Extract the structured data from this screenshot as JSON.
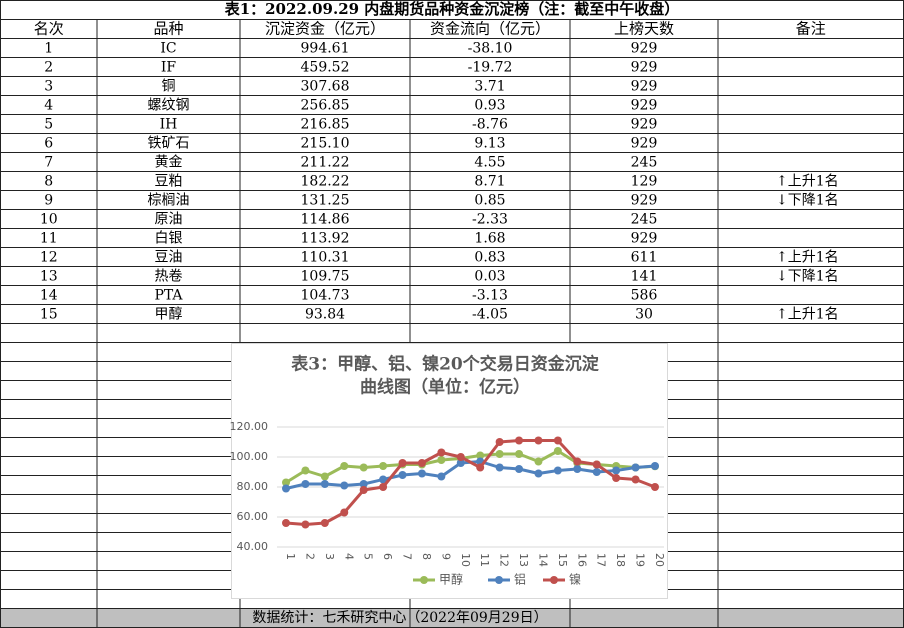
{
  "table": {
    "title": "表1：2022.09.29 内盘期货品种资金沉淀榜（注：截至中午收盘）",
    "columns": [
      "名次",
      "品种",
      "沉淀资金（亿元）",
      "资金流向（亿元）",
      "上榜天数",
      "备注"
    ],
    "rows": [
      {
        "rank": "1",
        "name": "IC",
        "amount": "994.61",
        "flow": "-38.10",
        "days": "929"
      },
      {
        "rank": "2",
        "name": "IF",
        "amount": "459.52",
        "flow": "-19.72",
        "days": "929"
      },
      {
        "rank": "3",
        "name": "铜",
        "amount": "307.68",
        "flow": "3.71",
        "days": "929"
      },
      {
        "rank": "4",
        "name": "螺纹钢",
        "amount": "256.85",
        "flow": "0.93",
        "days": "929"
      },
      {
        "rank": "5",
        "name": "IH",
        "amount": "216.85",
        "flow": "-8.76",
        "days": "929"
      },
      {
        "rank": "6",
        "name": "铁矿石",
        "amount": "215.10",
        "flow": "9.13",
        "days": "929"
      },
      {
        "rank": "7",
        "name": "黄金",
        "amount": "211.22",
        "flow": "4.55",
        "days": "245"
      },
      {
        "rank": "8",
        "name": "豆粕",
        "amount": "182.22",
        "flow": "8.71",
        "days": "129",
        "note": "↑上升1名"
      },
      {
        "rank": "9",
        "name": "棕榈油",
        "amount": "131.25",
        "flow": "0.85",
        "days": "929",
        "note": "↓下降1名"
      },
      {
        "rank": "10",
        "name": "原油",
        "amount": "114.86",
        "flow": "-2.33",
        "days": "245"
      },
      {
        "rank": "11",
        "name": "白银",
        "amount": "113.92",
        "flow": "1.68",
        "days": "929"
      },
      {
        "rank": "12",
        "name": "豆油",
        "amount": "110.31",
        "flow": "0.83",
        "days": "611",
        "note": "↑上升1名"
      },
      {
        "rank": "13",
        "name": "热卷",
        "amount": "109.75",
        "flow": "0.03",
        "days": "141",
        "note": "↓下降1名"
      },
      {
        "rank": "14",
        "name": "PTA",
        "amount": "104.73",
        "flow": "-3.13",
        "days": "586"
      },
      {
        "rank": "15",
        "name": "甲醇",
        "amount": "93.84",
        "flow": "-4.05",
        "days": "30",
        "note": "↑上升1名"
      }
    ],
    "footer": "数据统计：七禾研究中心（2022年09月29日）"
  },
  "chart_data": {
    "type": "line",
    "title": [
      "表3：甲醇、铝、镍20个交易日资金沉淀",
      "曲线图（单位：亿元）"
    ],
    "categories": [
      "1",
      "2",
      "3",
      "4",
      "5",
      "6",
      "7",
      "8",
      "9",
      "10",
      "11",
      "12",
      "13",
      "14",
      "15",
      "16",
      "17",
      "18",
      "19",
      "20"
    ],
    "series": [
      {
        "name": "甲醇",
        "color": "#9bbb59",
        "values": [
          83,
          91,
          87,
          94,
          93,
          94,
          95,
          95,
          98,
          99,
          101,
          102,
          102,
          97,
          104,
          96,
          95,
          94,
          93,
          93.84
        ]
      },
      {
        "name": "铝",
        "color": "#4f81bd",
        "values": [
          79,
          82,
          82,
          81,
          82,
          85,
          88,
          89,
          87,
          96,
          97,
          93,
          92,
          89,
          91,
          92,
          90,
          91,
          93,
          94
        ]
      },
      {
        "name": "镍",
        "color": "#c0504d",
        "values": [
          56,
          55,
          56,
          63,
          78,
          80,
          96,
          96,
          103,
          100,
          93,
          110,
          111,
          111,
          111,
          97,
          95,
          86,
          85,
          80
        ]
      }
    ],
    "ylim": [
      40,
      120
    ],
    "yticks": [
      {
        "value": 40,
        "label": "40.00"
      },
      {
        "value": 60,
        "label": "60.00"
      },
      {
        "value": 80,
        "label": "80.00"
      },
      {
        "value": 100,
        "label": "100.00"
      },
      {
        "value": 120,
        "label": "120.00"
      }
    ],
    "grid": true,
    "legend": "bottom"
  }
}
